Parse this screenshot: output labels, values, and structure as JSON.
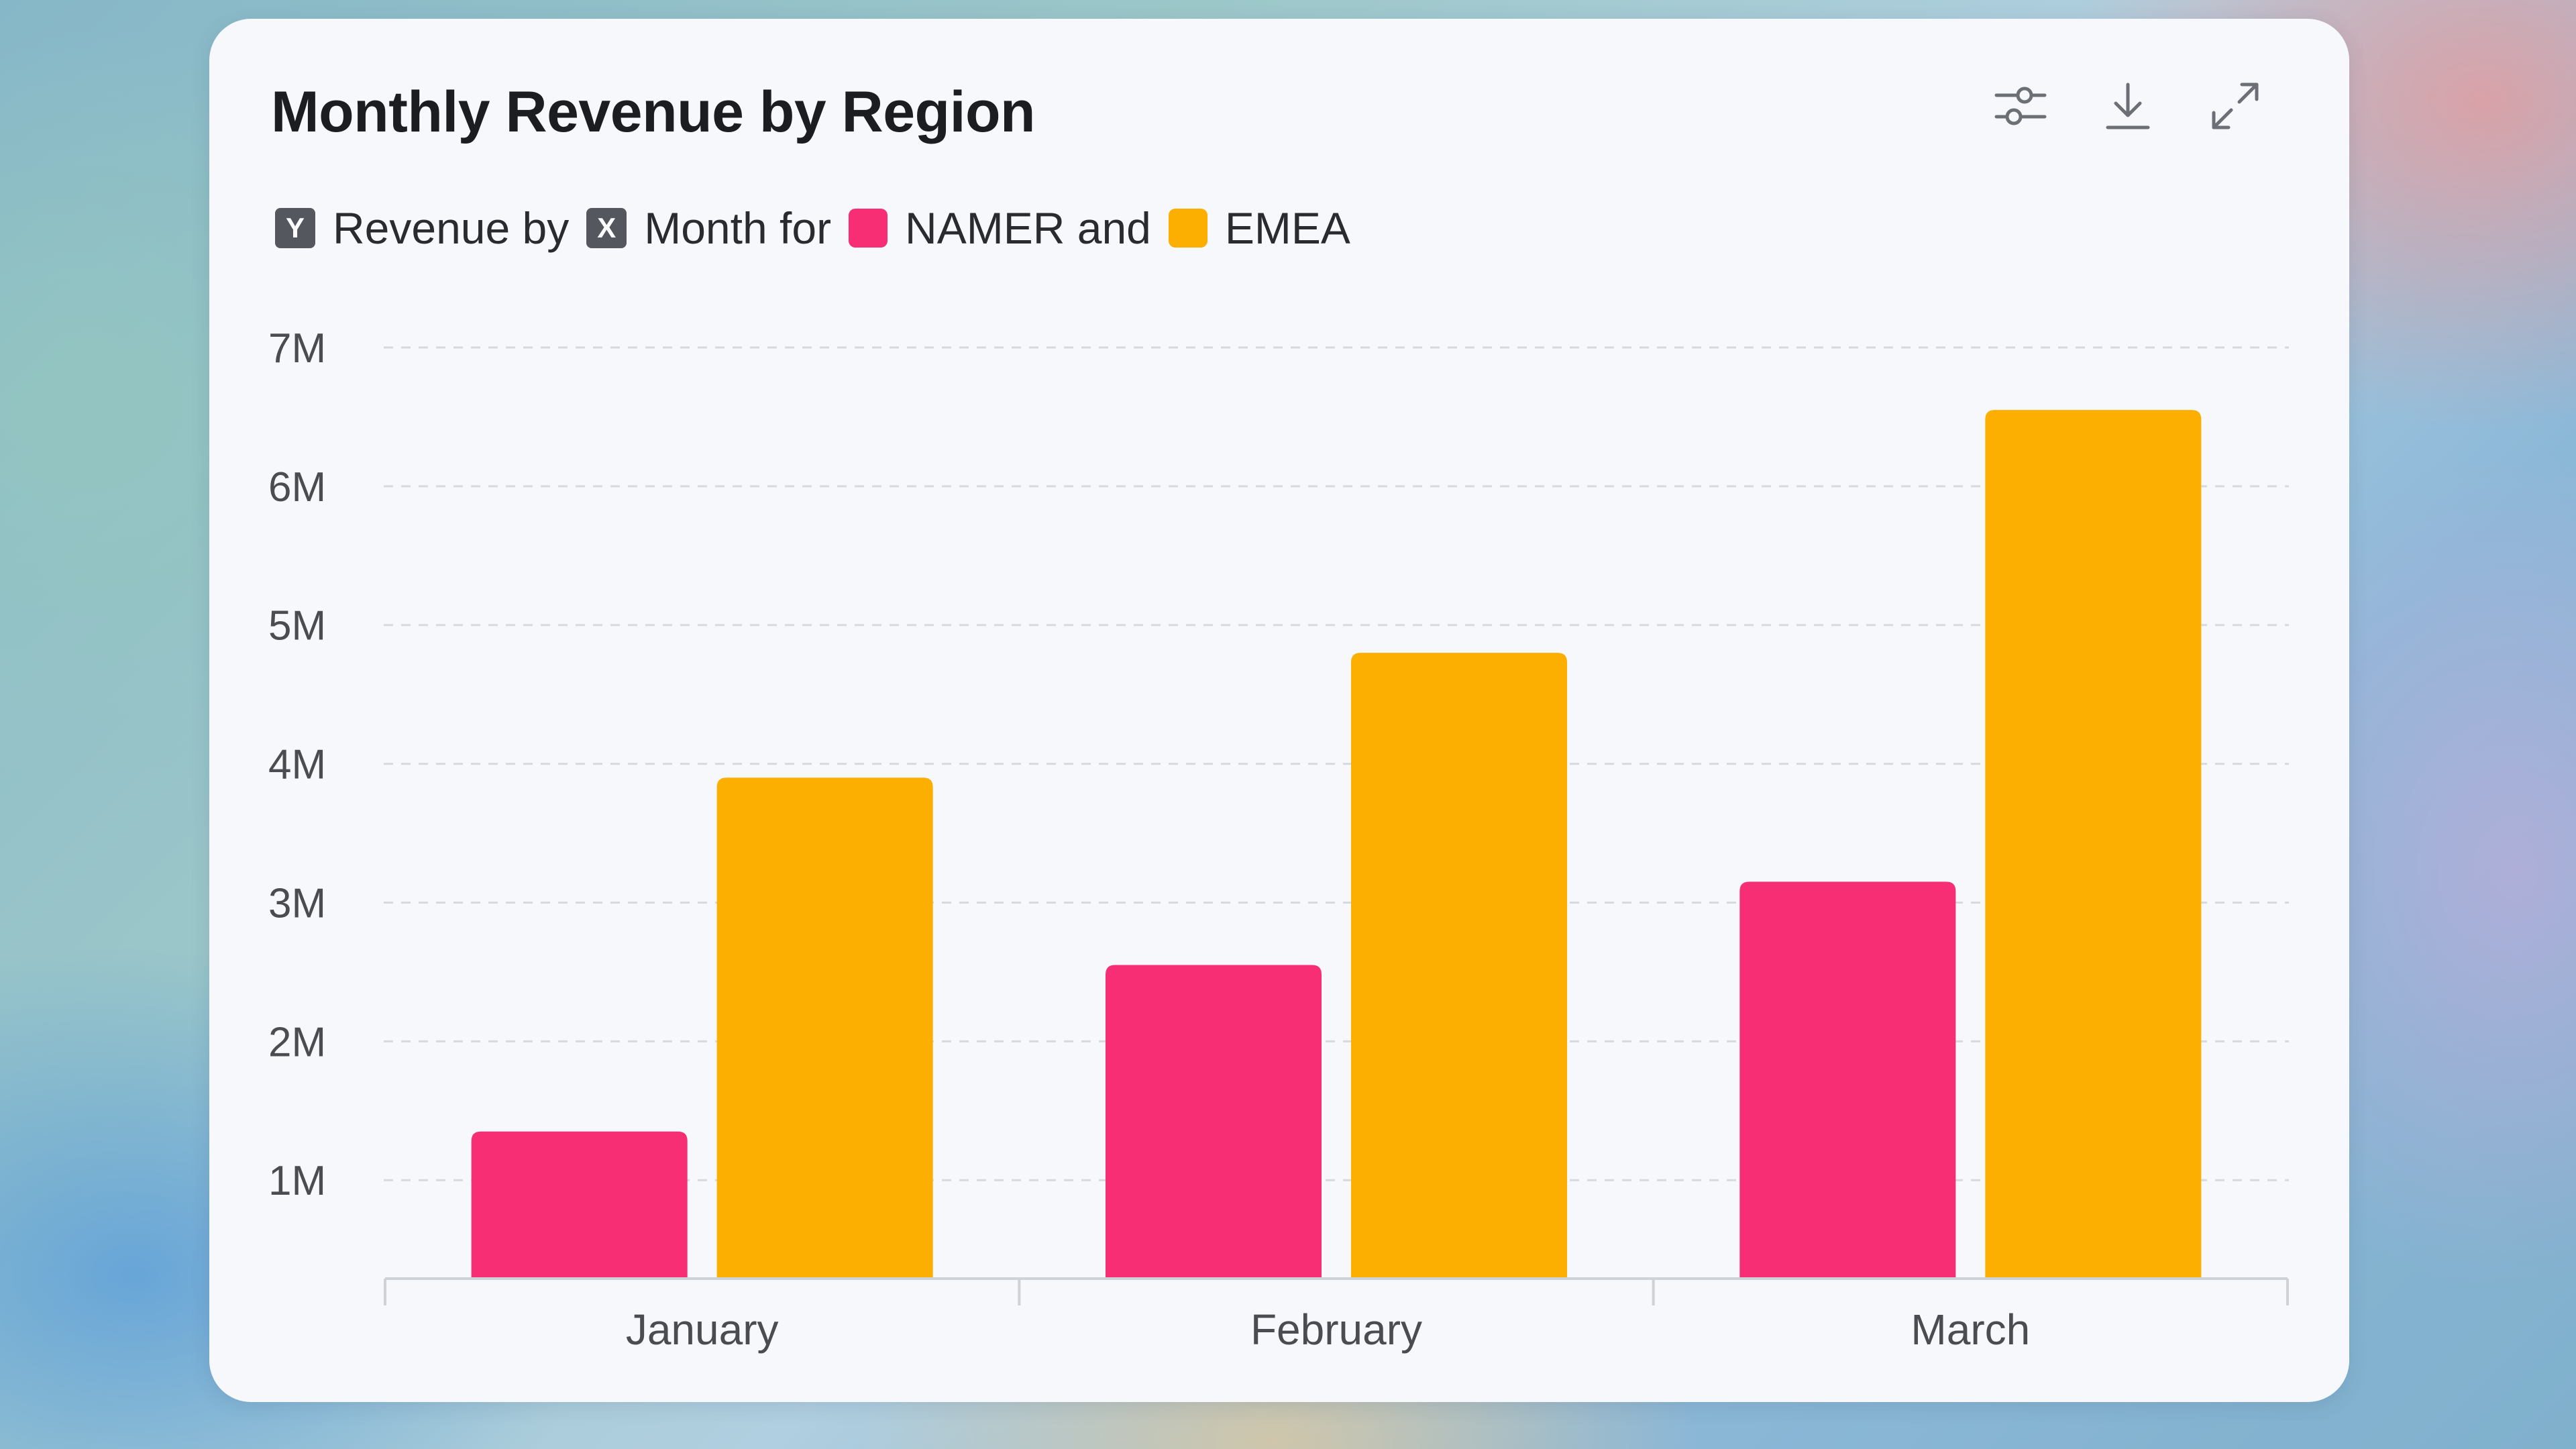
{
  "header": {
    "title": "Monthly Revenue by Region",
    "icons": [
      "sliders-icon",
      "download-icon",
      "expand-icon"
    ]
  },
  "subtitle": {
    "y_chip": "Y",
    "part1": "Revenue by",
    "x_chip": "X",
    "part2": "Month for",
    "series1": "NAMER and",
    "series2": "EMEA"
  },
  "colors": {
    "namer": "#f72e73",
    "emea": "#fdaf01",
    "grid": "#d6d9de",
    "axis_text": "#4a4c52"
  },
  "chart_data": {
    "type": "bar",
    "title": "Monthly Revenue by Region",
    "xlabel": "Month",
    "ylabel": "Revenue",
    "categories": [
      "January",
      "February",
      "March"
    ],
    "series": [
      {
        "name": "NAMER",
        "values": [
          1.35,
          2.55,
          3.15
        ]
      },
      {
        "name": "EMEA",
        "values": [
          3.9,
          4.8,
          6.55
        ]
      }
    ],
    "ylim": [
      0.3,
      7
    ],
    "yticks": [
      1,
      2,
      3,
      4,
      5,
      6,
      7
    ],
    "ytick_labels": [
      "1M",
      "2M",
      "3M",
      "4M",
      "5M",
      "6M",
      "7M"
    ],
    "grid": true,
    "legend": "top-left"
  }
}
